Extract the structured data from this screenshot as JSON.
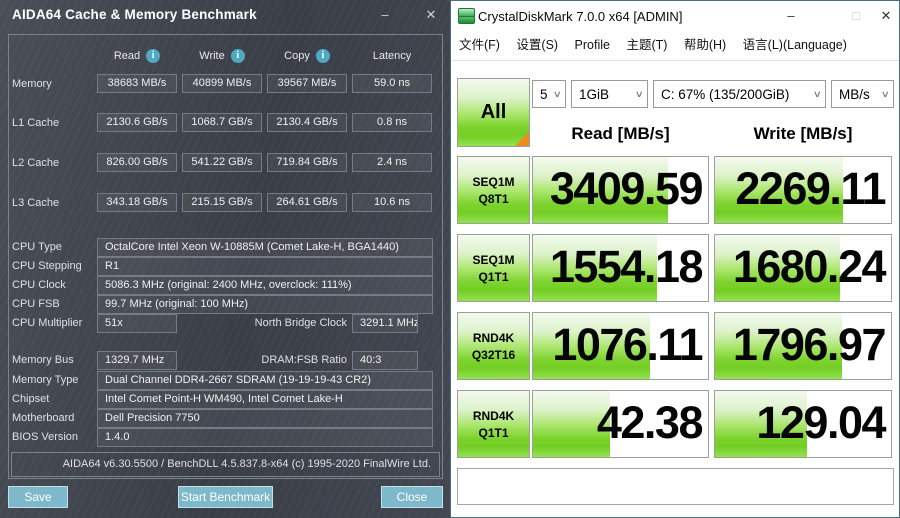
{
  "aida": {
    "title": "AIDA64 Cache & Memory Benchmark",
    "window_controls": {
      "minimize": "–",
      "close": "✕"
    },
    "columns": {
      "read": "Read",
      "write": "Write",
      "copy": "Copy",
      "latency": "Latency"
    },
    "info_icon_glyph": "i",
    "bench_rows": [
      {
        "label": "Memory",
        "read": "38683 MB/s",
        "write": "40899 MB/s",
        "copy": "39567 MB/s",
        "latency": "59.0 ns"
      },
      {
        "label": "L1 Cache",
        "read": "2130.6 GB/s",
        "write": "1068.7 GB/s",
        "copy": "2130.4 GB/s",
        "latency": "0.8 ns"
      },
      {
        "label": "L2 Cache",
        "read": "826.00 GB/s",
        "write": "541.22 GB/s",
        "copy": "719.84 GB/s",
        "latency": "2.4 ns"
      },
      {
        "label": "L3 Cache",
        "read": "343.18 GB/s",
        "write": "215.15 GB/s",
        "copy": "264.61 GB/s",
        "latency": "10.6 ns"
      }
    ],
    "info_rows": [
      {
        "label": "CPU Type",
        "value": "OctalCore Intel Xeon W-10885M  (Comet Lake-H, BGA1440)"
      },
      {
        "label": "CPU Stepping",
        "value": "R1"
      },
      {
        "label": "CPU Clock",
        "value": "5086.3 MHz  (original: 2400 MHz, overclock: 111%)"
      },
      {
        "label": "CPU FSB",
        "value": "99.7 MHz  (original: 100 MHz)"
      }
    ],
    "cpu_multiplier": {
      "label": "CPU Multiplier",
      "value": "51x",
      "nb_label": "North Bridge Clock",
      "nb_value": "3291.1 MHz"
    },
    "memory_bus": {
      "label": "Memory Bus",
      "value": "1329.7 MHz",
      "ratio_label": "DRAM:FSB Ratio",
      "ratio_value": "40:3"
    },
    "info_rows2": [
      {
        "label": "Memory Type",
        "value": "Dual Channel DDR4-2667 SDRAM  (19-19-19-43 CR2)"
      },
      {
        "label": "Chipset",
        "value": "Intel Comet Point-H WM490, Intel Comet Lake-H"
      },
      {
        "label": "Motherboard",
        "value": "Dell Precision 7750"
      },
      {
        "label": "BIOS Version",
        "value": "1.4.0"
      }
    ],
    "footer": "AIDA64 v6.30.5500 / BenchDLL 4.5.837.8-x64  (c) 1995-2020 FinalWire Ltd.",
    "buttons": {
      "save": "Save",
      "start": "Start Benchmark",
      "close": "Close"
    },
    "colors": {
      "background": "#3f434b",
      "button_teal": "#7db9ca",
      "info_icon": "#4fa9c3"
    }
  },
  "cdm": {
    "title": "CrystalDiskMark 7.0.0 x64 [ADMIN]",
    "window_controls": {
      "minimize": "–",
      "maximize": "□",
      "close": "✕"
    },
    "menu": [
      "文件(F)",
      "设置(S)",
      "Profile",
      "主题(T)",
      "帮助(H)",
      "语言(L)(Language)"
    ],
    "all_button": "All",
    "chevron_glyph": "∨",
    "dropdowns": {
      "count": "5",
      "size": "1GiB",
      "drive": "C: 67% (135/200GiB)",
      "unit": "MB/s"
    },
    "read_header": "Read [MB/s]",
    "write_header": "Write [MB/s]",
    "rows": [
      {
        "label_line1": "SEQ1M",
        "label_line2": "Q8T1",
        "read": "3409.59",
        "write": "2269.11",
        "read_fill_pct": 77,
        "write_fill_pct": 73
      },
      {
        "label_line1": "SEQ1M",
        "label_line2": "Q1T1",
        "read": "1554.18",
        "write": "1680.24",
        "read_fill_pct": 71,
        "write_fill_pct": 71
      },
      {
        "label_line1": "RND4K",
        "label_line2": "Q32T16",
        "read": "1076.11",
        "write": "1796.97",
        "read_fill_pct": 67,
        "write_fill_pct": 72
      },
      {
        "label_line1": "RND4K",
        "label_line2": "Q1T1",
        "read": "42.38",
        "write": "129.04",
        "read_fill_pct": 44,
        "write_fill_pct": 52
      }
    ],
    "comment_value": "",
    "colors": {
      "green": "#77d22b",
      "orange": "#ef8b1a",
      "window_border": "#44707f"
    }
  }
}
